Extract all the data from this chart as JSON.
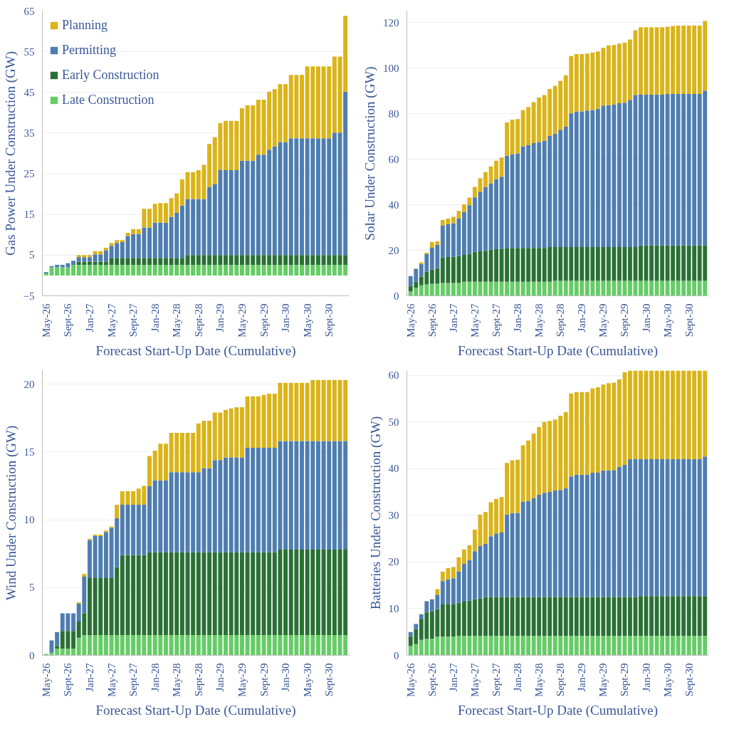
{
  "chart_data": [
    {
      "type": "bar",
      "stacked": true,
      "ylabel": "Gas Power Under Construction (GW)",
      "xlabel": "Forecast Start-Up Date (Cumulative)",
      "ylim": [
        -5,
        65
      ],
      "yticks": [
        -5,
        5,
        15,
        25,
        35,
        45,
        55,
        65
      ],
      "grid": "y",
      "legend": "top left",
      "categories": [
        "May-26",
        null,
        null,
        null,
        "Sept-26",
        null,
        null,
        null,
        "Jan-27",
        null,
        null,
        null,
        "May-27",
        null,
        null,
        null,
        "Sept-27",
        null,
        null,
        null,
        "Jan-28",
        null,
        null,
        null,
        "May-28",
        null,
        null,
        null,
        "Sept-28",
        null,
        null,
        null,
        "Jan-29",
        null,
        null,
        null,
        "May-29",
        null,
        null,
        null,
        "Sept-29",
        null,
        null,
        null,
        "Jan-30",
        null,
        null,
        null,
        "May-30",
        null,
        null,
        null,
        "Sept-30",
        null,
        null,
        null
      ],
      "series": [
        {
          "name": "Late Construction",
          "color": "#66cc66",
          "values": [
            0.5,
            2.0,
            2.0,
            2.0,
            2.0,
            2.6,
            2.6,
            2.6,
            2.6,
            2.6,
            2.6,
            2.6,
            2.6,
            2.6,
            2.6,
            2.6,
            2.6,
            2.6,
            2.6,
            2.6,
            2.6,
            2.6,
            2.6,
            2.6,
            2.6,
            2.6,
            2.6,
            2.6,
            2.6,
            2.6,
            2.6,
            2.6,
            2.6,
            2.6,
            2.6,
            2.6,
            2.6,
            2.6,
            2.6,
            2.6,
            2.6,
            2.6,
            2.6,
            2.6,
            2.6,
            2.6,
            2.6,
            2.6,
            2.6,
            2.6,
            2.6,
            2.6,
            2.6,
            2.6,
            2.6,
            2.6
          ]
        },
        {
          "name": "Early Construction",
          "color": "#2a7034",
          "values": [
            0,
            0,
            0,
            0,
            0,
            0,
            0.8,
            0.8,
            0.8,
            0.8,
            0.8,
            0.8,
            1.7,
            1.7,
            1.7,
            1.7,
            1.7,
            1.7,
            1.7,
            1.7,
            1.7,
            1.7,
            1.7,
            1.7,
            1.7,
            1.7,
            2.4,
            2.4,
            2.4,
            2.4,
            2.4,
            2.4,
            2.4,
            2.4,
            2.4,
            2.4,
            2.4,
            2.4,
            2.4,
            2.4,
            2.4,
            2.4,
            2.4,
            2.4,
            2.4,
            2.4,
            2.4,
            2.4,
            2.4,
            2.4,
            2.4,
            2.4,
            2.4,
            2.4,
            2.4,
            2.4
          ]
        },
        {
          "name": "Permitting",
          "color": "#4e7db0",
          "values": [
            0.3,
            0.3,
            0.6,
            0.6,
            1.0,
            1.0,
            1.1,
            1.1,
            1.1,
            1.8,
            1.8,
            2.8,
            3.0,
            3.7,
            3.9,
            5.4,
            5.9,
            5.9,
            7.5,
            7.5,
            8.7,
            8.7,
            8.7,
            10.1,
            11.1,
            12.9,
            13.8,
            13.8,
            13.8,
            13.8,
            16.7,
            17.5,
            20.9,
            20.9,
            20.9,
            20.9,
            23.2,
            23.2,
            23.2,
            24.7,
            24.7,
            25.9,
            26.7,
            27.8,
            27.8,
            28.7,
            28.7,
            28.7,
            28.7,
            28.7,
            28.7,
            28.7,
            28.7,
            30.1,
            30.1,
            40.2
          ]
        },
        {
          "name": "Planning",
          "color": "#dab418",
          "values": [
            0,
            0,
            0,
            0,
            0,
            0,
            0.5,
            0.5,
            0.5,
            0.8,
            0.8,
            0.6,
            0.7,
            0.7,
            0.5,
            0.8,
            1.2,
            1.2,
            4.6,
            4.6,
            4.6,
            4.8,
            4.8,
            4.6,
            4.8,
            6.4,
            6.6,
            6.6,
            7.1,
            8.4,
            10.6,
            11.5,
            11.6,
            12.1,
            12.1,
            12.1,
            12.9,
            13.6,
            13.6,
            13.5,
            13.5,
            14.3,
            14.1,
            14.2,
            14.2,
            15.6,
            15.6,
            15.6,
            17.7,
            17.7,
            17.7,
            17.7,
            17.7,
            18.7,
            18.7,
            18.6
          ]
        }
      ]
    },
    {
      "type": "bar",
      "stacked": true,
      "ylabel": "Solar Under Construction (GW)",
      "xlabel": "Forecast Start-Up Date (Cumulative)",
      "ylim": [
        0,
        125
      ],
      "yticks": [
        0,
        20,
        40,
        60,
        80,
        100,
        120
      ],
      "grid": "y",
      "categories": [
        "May-26",
        null,
        null,
        null,
        "Sept-26",
        null,
        null,
        null,
        "Jan-27",
        null,
        null,
        null,
        "May-27",
        null,
        null,
        null,
        "Sept-27",
        null,
        null,
        null,
        "Jan-28",
        null,
        null,
        null,
        "May-28",
        null,
        null,
        null,
        "Sept-28",
        null,
        null,
        null,
        "Jan-29",
        null,
        null,
        null,
        "May-29",
        null,
        null,
        null,
        "Sept-29",
        null,
        null,
        null,
        "Jan-30",
        null,
        null,
        null,
        "May-30",
        null,
        null,
        null,
        "Sept-30",
        null,
        null,
        null
      ],
      "series": [
        {
          "color": "#66cc66",
          "values": [
            1.9,
            3.5,
            4.6,
            5.0,
            5.2,
            5.3,
            5.6,
            5.6,
            5.6,
            5.6,
            6.2,
            6.2,
            6.2,
            6.2,
            6.2,
            6.2,
            6.2,
            6.2,
            6.2,
            6.2,
            6.2,
            6.2,
            6.2,
            6.2,
            6.2,
            6.2,
            6.2,
            6.6,
            6.6,
            6.6,
            6.6,
            6.6,
            6.6,
            6.6,
            6.6,
            6.6,
            6.6,
            6.6,
            6.6,
            6.6,
            6.6,
            6.6,
            6.6,
            6.6,
            6.6,
            6.6,
            6.6,
            6.6,
            6.6,
            6.6,
            6.6,
            6.6,
            6.6,
            6.6,
            6.6,
            6.6
          ]
        },
        {
          "color": "#2a7034",
          "values": [
            2.4,
            2.7,
            3.8,
            5.6,
            6.4,
            6.9,
            11.2,
            11.4,
            11.5,
            11.8,
            11.8,
            12.2,
            13.1,
            13.3,
            13.6,
            14.0,
            14.3,
            14.5,
            14.8,
            14.8,
            14.8,
            14.8,
            14.8,
            14.8,
            14.8,
            14.8,
            15.2,
            14.8,
            14.8,
            14.8,
            14.8,
            14.8,
            14.8,
            14.8,
            14.8,
            14.8,
            14.8,
            14.8,
            14.8,
            14.8,
            14.8,
            14.8,
            14.8,
            15.5,
            15.5,
            15.5,
            15.5,
            15.5,
            15.5,
            15.5,
            15.5,
            15.5,
            15.5,
            15.5,
            15.5,
            15.5
          ]
        },
        {
          "color": "#4e7db0",
          "values": [
            4.4,
            5.6,
            5.6,
            7.7,
            9.5,
            10.2,
            14.1,
            14.4,
            14.8,
            16.5,
            18.9,
            21.4,
            23.9,
            26.2,
            27.9,
            29.2,
            30.7,
            31.6,
            40.5,
            41.2,
            41.5,
            44.6,
            45.1,
            46.0,
            46.5,
            47.1,
            48.8,
            49.8,
            51.5,
            52.8,
            58.7,
            59.5,
            59.5,
            59.9,
            60.2,
            60.7,
            62.1,
            62.3,
            62.6,
            63.1,
            63.4,
            64.6,
            66.8,
            66.2,
            66.2,
            66.2,
            66.2,
            66.2,
            66.5,
            66.5,
            66.5,
            66.5,
            66.5,
            66.5,
            66.5,
            68.0
          ]
        },
        {
          "color": "#dab418",
          "values": [
            0,
            0.2,
            0.7,
            0.6,
            2.5,
            1.6,
            2.4,
            2.5,
            2.8,
            3.4,
            3.2,
            3.3,
            4.6,
            5.9,
            6.6,
            7.4,
            8.1,
            8.4,
            14.6,
            15.1,
            15.1,
            15.9,
            16.8,
            18.0,
            19.5,
            20.0,
            20.6,
            21.0,
            21.5,
            22.6,
            25.1,
            25.2,
            25.2,
            25.0,
            25.2,
            25.2,
            25.3,
            26.2,
            26.1,
            26.2,
            26.4,
            26.5,
            28.4,
            29.6,
            29.6,
            29.6,
            29.6,
            29.6,
            29.5,
            29.8,
            30.0,
            30.0,
            30.0,
            30.0,
            30.0,
            30.5
          ]
        }
      ]
    },
    {
      "type": "bar",
      "stacked": true,
      "ylabel": "Wind Under Construction (GW)",
      "xlabel": "Forecast Start-Up Date (Cumulative)",
      "ylim": [
        0,
        21
      ],
      "yticks": [
        0,
        5,
        10,
        15,
        20
      ],
      "grid": "y",
      "categories": [
        "May-26",
        null,
        null,
        null,
        "Sept-26",
        null,
        null,
        null,
        "Jan-27",
        null,
        null,
        null,
        "May-27",
        null,
        null,
        null,
        "Sept-27",
        null,
        null,
        null,
        "Jan-28",
        null,
        null,
        null,
        "May-28",
        null,
        null,
        null,
        "Sept-28",
        null,
        null,
        null,
        "Jan-29",
        null,
        null,
        null,
        "May-29",
        null,
        null,
        null,
        "Sept-29",
        null,
        null,
        null,
        "Jan-30",
        null,
        null,
        null,
        "May-30",
        null,
        null,
        null,
        "Sept-30",
        null,
        null,
        null
      ],
      "series": [
        {
          "color": "#66cc66",
          "values": [
            0.1,
            0.2,
            0.5,
            0.5,
            0.5,
            0.5,
            1.3,
            1.5,
            1.5,
            1.5,
            1.5,
            1.5,
            1.5,
            1.5,
            1.5,
            1.5,
            1.5,
            1.5,
            1.5,
            1.5,
            1.5,
            1.5,
            1.5,
            1.5,
            1.5,
            1.5,
            1.5,
            1.5,
            1.5,
            1.5,
            1.5,
            1.5,
            1.5,
            1.5,
            1.5,
            1.5,
            1.5,
            1.5,
            1.5,
            1.5,
            1.5,
            1.5,
            1.5,
            1.5,
            1.5,
            1.5,
            1.5,
            1.5,
            1.5,
            1.5,
            1.5,
            1.5,
            1.5,
            1.5,
            1.5,
            1.5
          ]
        },
        {
          "color": "#2a7034",
          "values": [
            0,
            0,
            0.2,
            1.3,
            1.3,
            1.3,
            1.2,
            1.6,
            4.2,
            4.2,
            4.2,
            4.2,
            4.2,
            5.0,
            5.9,
            5.9,
            5.9,
            5.9,
            5.9,
            6.1,
            6.1,
            6.1,
            6.1,
            6.1,
            6.1,
            6.1,
            6.1,
            6.1,
            6.1,
            6.1,
            6.1,
            6.1,
            6.1,
            6.1,
            6.1,
            6.1,
            6.1,
            6.1,
            6.1,
            6.1,
            6.1,
            6.1,
            6.1,
            6.3,
            6.3,
            6.3,
            6.3,
            6.3,
            6.3,
            6.3,
            6.3,
            6.3,
            6.3,
            6.3,
            6.3,
            6.3
          ]
        },
        {
          "color": "#4e7db0",
          "values": [
            0,
            0.9,
            1.0,
            1.3,
            1.3,
            1.3,
            1.3,
            2.7,
            2.8,
            3.1,
            3.1,
            3.4,
            3.7,
            3.6,
            3.7,
            3.7,
            3.7,
            3.7,
            3.7,
            4.9,
            5.3,
            5.3,
            5.3,
            5.9,
            5.9,
            5.9,
            5.9,
            5.9,
            5.9,
            6.2,
            6.2,
            6.8,
            6.8,
            7.0,
            7.0,
            7.0,
            7.0,
            7.7,
            7.7,
            7.7,
            7.7,
            7.7,
            7.7,
            8.0,
            8.0,
            8.0,
            8.0,
            8.0,
            8.0,
            8.0,
            8.0,
            8.0,
            8.0,
            8.0,
            8.0,
            8.0
          ]
        },
        {
          "color": "#dab418",
          "values": [
            0,
            0,
            0,
            0,
            0,
            0,
            0.1,
            0.2,
            0.1,
            0.1,
            0.1,
            0.1,
            0.1,
            1.0,
            1.0,
            1.0,
            1.0,
            1.2,
            1.4,
            2.2,
            2.2,
            2.7,
            2.7,
            2.9,
            2.9,
            2.9,
            2.9,
            2.9,
            3.6,
            3.5,
            3.5,
            3.5,
            3.5,
            3.5,
            3.6,
            3.7,
            3.7,
            3.8,
            3.8,
            3.8,
            3.9,
            4.0,
            4.0,
            4.3,
            4.3,
            4.3,
            4.3,
            4.3,
            4.3,
            4.5,
            4.5,
            4.5,
            4.5,
            4.5,
            4.5,
            4.5
          ]
        }
      ]
    },
    {
      "type": "bar",
      "stacked": true,
      "ylabel": "Batteries Under Construction (GW)",
      "xlabel": "Forecast Start-Up Date (Cumulative)",
      "ylim": [
        0,
        61
      ],
      "yticks": [
        0,
        10,
        20,
        30,
        40,
        50,
        60
      ],
      "grid": "y",
      "categories": [
        "May-26",
        null,
        null,
        null,
        "Sept-26",
        null,
        null,
        null,
        "Jan-27",
        null,
        null,
        null,
        "May-27",
        null,
        null,
        null,
        "Sept-27",
        null,
        null,
        null,
        "Jan-28",
        null,
        null,
        null,
        "May-28",
        null,
        null,
        null,
        "Sept-28",
        null,
        null,
        null,
        "Jan-29",
        null,
        null,
        null,
        "May-29",
        null,
        null,
        null,
        "Sept-29",
        null,
        null,
        null,
        "Jan-30",
        null,
        null,
        null,
        "May-30",
        null,
        null,
        null,
        "Sept-30",
        null,
        null,
        null
      ],
      "series": [
        {
          "color": "#66cc66",
          "values": [
            2.0,
            2.4,
            3.3,
            3.5,
            3.6,
            4.0,
            4.0,
            4.0,
            4.0,
            4.2,
            4.2,
            4.2,
            4.2,
            4.2,
            4.2,
            4.2,
            4.2,
            4.2,
            4.2,
            4.2,
            4.2,
            4.2,
            4.2,
            4.2,
            4.2,
            4.2,
            4.2,
            4.2,
            4.2,
            4.2,
            4.2,
            4.2,
            4.2,
            4.2,
            4.2,
            4.2,
            4.2,
            4.2,
            4.2,
            4.2,
            4.2,
            4.2,
            4.2,
            4.2,
            4.2,
            4.2,
            4.2,
            4.2,
            4.2,
            4.2,
            4.2,
            4.2,
            4.2,
            4.2,
            4.2,
            4.2
          ]
        },
        {
          "color": "#2a7034",
          "values": [
            2.1,
            3.2,
            4.4,
            5.7,
            5.9,
            5.9,
            7.0,
            7.0,
            7.0,
            7.1,
            7.3,
            7.5,
            7.8,
            8.0,
            8.3,
            8.3,
            8.3,
            8.3,
            8.3,
            8.3,
            8.3,
            8.3,
            8.3,
            8.3,
            8.3,
            8.3,
            8.3,
            8.3,
            8.3,
            8.3,
            8.3,
            8.3,
            8.3,
            8.3,
            8.3,
            8.3,
            8.3,
            8.3,
            8.3,
            8.3,
            8.3,
            8.3,
            8.3,
            8.5,
            8.5,
            8.5,
            8.5,
            8.5,
            8.5,
            8.5,
            8.5,
            8.5,
            8.5,
            8.5,
            8.5,
            8.5
          ]
        },
        {
          "color": "#4e7db0",
          "values": [
            0.9,
            1.1,
            1.1,
            2.4,
            2.5,
            3.1,
            4.9,
            5.3,
            5.5,
            6.7,
            8.1,
            8.7,
            10.3,
            11.3,
            11.4,
            13.0,
            13.6,
            13.8,
            17.6,
            18.0,
            18.0,
            20.4,
            20.6,
            21.2,
            21.9,
            22.3,
            22.5,
            22.8,
            22.9,
            23.3,
            25.8,
            26.2,
            26.2,
            26.2,
            26.6,
            26.6,
            27.1,
            27.1,
            27.2,
            27.9,
            28.3,
            29.5,
            29.5,
            29.3,
            29.3,
            29.3,
            29.3,
            29.3,
            29.3,
            29.3,
            29.3,
            29.3,
            29.3,
            29.3,
            29.3,
            29.9
          ]
        },
        {
          "color": "#dab418",
          "values": [
            0,
            0,
            0,
            0,
            0,
            1.2,
            2.0,
            2.4,
            2.4,
            3.0,
            3.1,
            3.2,
            4.6,
            6.6,
            6.8,
            7.3,
            7.4,
            7.6,
            11.1,
            11.3,
            11.4,
            12.1,
            12.9,
            13.8,
            14.5,
            15.2,
            15.2,
            15.2,
            15.9,
            16.3,
            17.8,
            17.7,
            17.7,
            17.7,
            18.1,
            18.3,
            18.4,
            18.7,
            18.7,
            18.7,
            19.8,
            19.0,
            19.0,
            19.0,
            19.0,
            19.0,
            19.0,
            19.0,
            19.0,
            19.0,
            19.0,
            19.0,
            19.0,
            19.0,
            19.0,
            18.4
          ]
        }
      ]
    }
  ]
}
